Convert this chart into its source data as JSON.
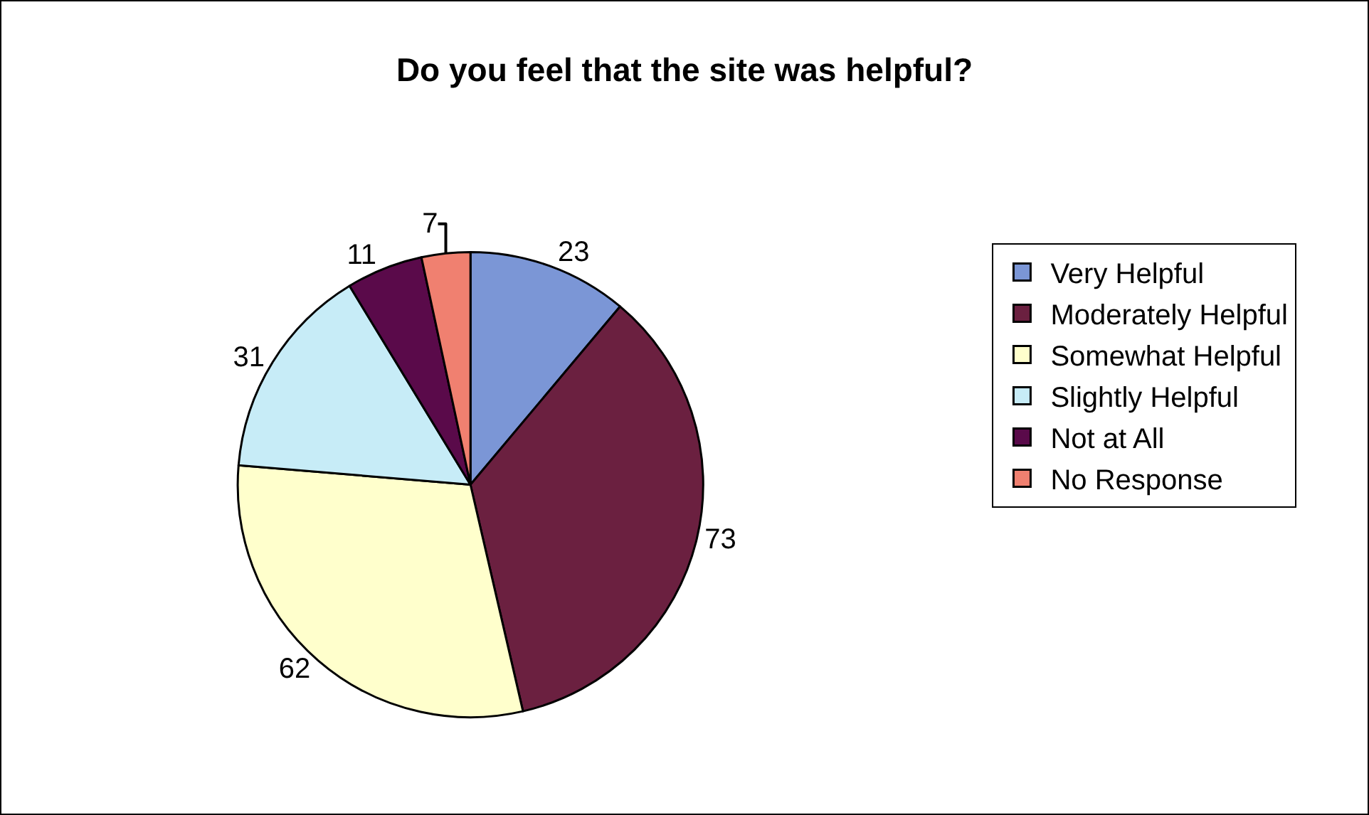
{
  "chart_data": {
    "type": "pie",
    "title": "Do you feel that the site was helpful?",
    "categories": [
      "Very Helpful",
      "Moderately Helpful",
      "Somewhat Helpful",
      "Slightly Helpful",
      "Not at All",
      "No Response"
    ],
    "values": [
      23,
      73,
      62,
      31,
      11,
      7
    ],
    "colors": [
      "#7b96d6",
      "#6b2040",
      "#ffffcc",
      "#c7ecf7",
      "#5a0a4a",
      "#f08070"
    ],
    "data_labels": true,
    "legend": "right"
  }
}
